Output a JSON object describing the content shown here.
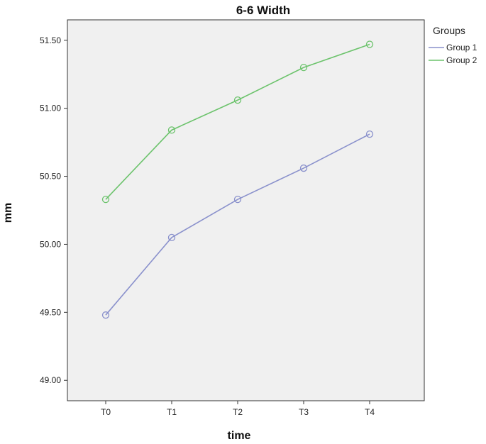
{
  "chart_data": {
    "type": "line",
    "title": "6-6 Width",
    "xlabel": "time",
    "ylabel": "mm",
    "categories": [
      "T0",
      "T1",
      "T2",
      "T3",
      "T4"
    ],
    "ylim": [
      48.85,
      51.65
    ],
    "yticks": [
      "49.00",
      "49.50",
      "50.00",
      "50.50",
      "51.00",
      "51.50"
    ],
    "grid": false,
    "legend": {
      "title": "Groups",
      "placement": "right"
    },
    "series": [
      {
        "name": "Group 1",
        "color": "#8a91cc",
        "values": [
          49.48,
          50.05,
          50.33,
          50.56,
          50.81
        ],
        "marker": "open-circle"
      },
      {
        "name": "Group 2",
        "color": "#6cc36c",
        "values": [
          50.33,
          50.84,
          51.06,
          51.3,
          51.47
        ],
        "marker": "open-circle"
      }
    ]
  }
}
